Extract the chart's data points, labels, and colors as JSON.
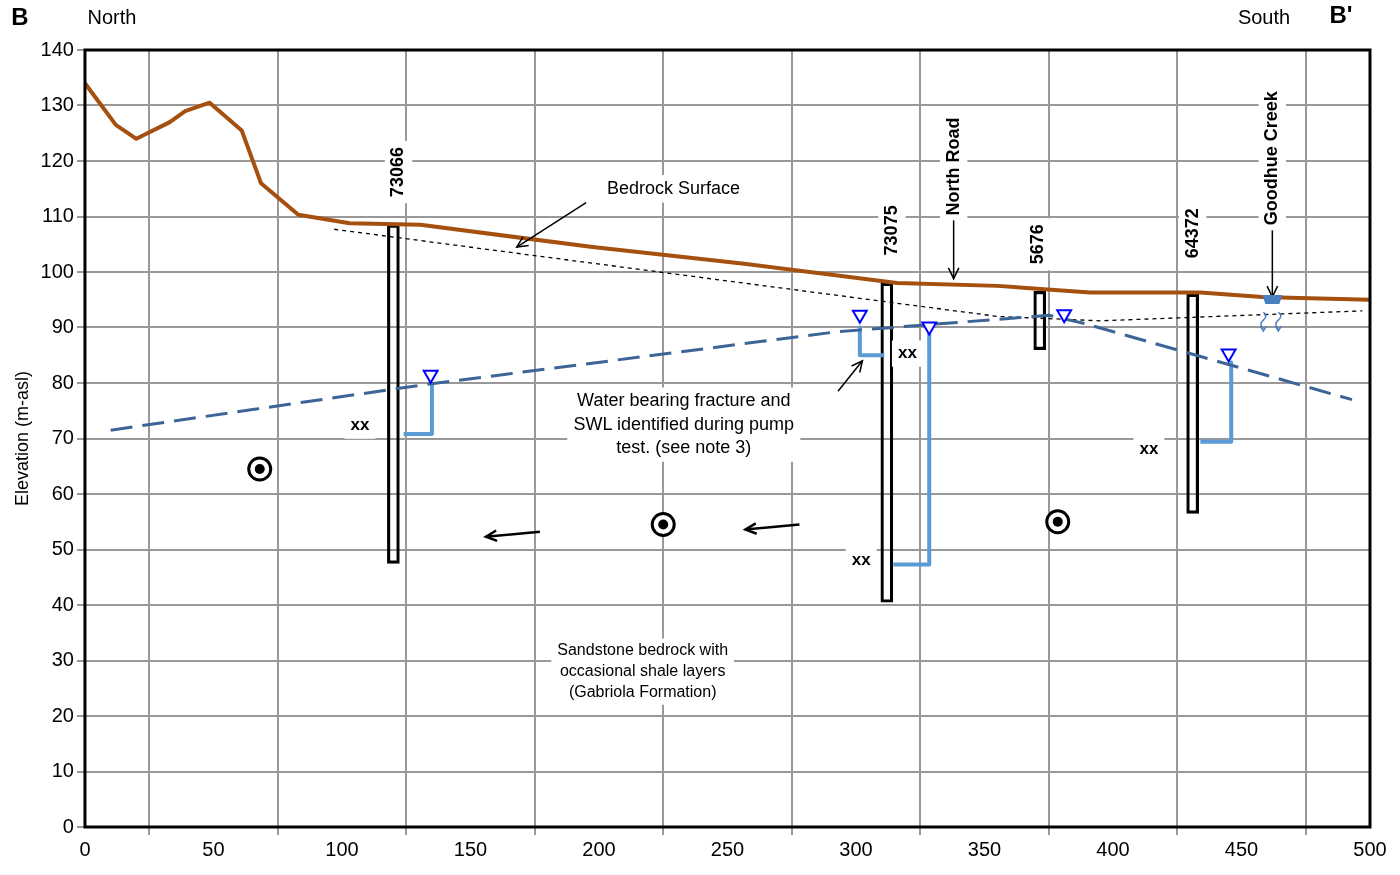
{
  "chart_data": {
    "type": "line",
    "ylabel": "Elevation (m-asl)",
    "xlim": [
      0,
      500
    ],
    "xticks": [
      0,
      50,
      100,
      150,
      200,
      250,
      300,
      350,
      400,
      450,
      500
    ],
    "ylim": [
      0,
      140
    ],
    "yticks": [
      0,
      10,
      20,
      30,
      40,
      50,
      60,
      70,
      80,
      90,
      100,
      110,
      120,
      130,
      140
    ],
    "grid": true,
    "legend": false,
    "series": [
      {
        "type": "bar",
        "color": "#000000",
        "x": [
          120,
          312,
          371.5,
          431
        ],
        "base": [
          47.5,
          40.5,
          86,
          56.5
        ],
        "values": [
          61,
          57.5,
          10.5,
          39.5
        ]
      },
      {
        "color": "#a5500f",
        "marker": "none",
        "line_style": "solid",
        "x": [
          0,
          12,
          20,
          33,
          39,
          48.5,
          61,
          68.5,
          83,
          103,
          130.5,
          197.5,
          256.5,
          316,
          355,
          391,
          434,
          458,
          500
        ],
        "values": [
          134,
          126.5,
          124,
          127,
          129,
          130.5,
          125.5,
          116,
          110.3,
          108.8,
          108.5,
          104.5,
          101.5,
          98,
          97.5,
          96.3,
          96.3,
          95.5,
          95
        ]
      },
      {
        "color": "#3c6496",
        "marker": "none",
        "line_style": "dashed",
        "x": [
          10,
          130.5,
          292,
          375,
          389,
          493
        ],
        "values": [
          71.5,
          79.6,
          89.2,
          92.2,
          90.7,
          77
        ]
      },
      {
        "color": "#000000",
        "marker": "none",
        "line_style": "dotted",
        "x": [
          97,
          355,
          395,
          497
        ],
        "values": [
          107.7,
          92,
          91.2,
          93
        ]
      },
      {
        "color": "#5b9bd5",
        "marker": "none",
        "line_style": "solid",
        "x": [
          135,
          135,
          124,
          129,
          301.5,
          301.5,
          311,
          320,
          328.5,
          328.5,
          314.5,
          380,
          446,
          446,
          434
        ],
        "values": [
          79.6,
          70.8,
          70.8,
          null,
          90,
          85,
          85,
          null,
          88.8,
          47.3,
          47.3,
          null,
          83.7,
          69.4,
          69.4
        ]
      },
      {
        "type": "scatter",
        "color": "#0000ff",
        "marker": "triangle",
        "x": [
          134.5,
          301.5,
          328.5,
          381,
          445
        ],
        "values": [
          81.5,
          92.3,
          90.2,
          92.4,
          85.3
        ]
      }
    ],
    "annotations": [
      "B",
      "North",
      "South",
      "B'",
      "73066",
      "73075",
      "North Road",
      "5676",
      "64372",
      {
        "text": "Goodhue Creek",
        "x": 462,
        "y": 95.5
      },
      "Bedrock Surface",
      "Water bearing fracture and SWL identified during pump test. (see note 3)",
      "Sandstone bedrock with occasional shale layers (Gabriola Formation)",
      "xx",
      "xx",
      "xx",
      "xx"
    ]
  }
}
